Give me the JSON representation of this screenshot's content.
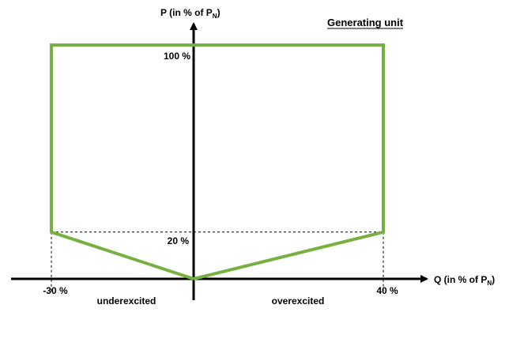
{
  "chart_data": {
    "type": "line",
    "title": "Generating unit",
    "xlabel": {
      "main": "Q (in % of P",
      "sub": "N",
      "close": ")"
    },
    "ylabel": {
      "main": "P (in % of P",
      "sub": "N",
      "close": ")"
    },
    "xlim": [
      -32,
      45
    ],
    "ylim": [
      0,
      115
    ],
    "x_ticks": [
      {
        "value": -30,
        "label": "-30 %"
      },
      {
        "value": 40,
        "label": "40 %"
      }
    ],
    "y_ticks": [
      {
        "value": 100,
        "label": "100 %"
      },
      {
        "value": 20,
        "label": "20 %"
      }
    ],
    "region_labels": {
      "left": "underexcited",
      "right": "overexcited"
    },
    "grid": false,
    "series": [
      {
        "x": [
          0,
          -30,
          -30,
          40,
          40,
          0
        ],
        "y": [
          0,
          20,
          100,
          100,
          20,
          0
        ],
        "color": "#76b041"
      }
    ],
    "reference_lines": {
      "color": "#000000",
      "style": "dashed",
      "level": 20
    }
  }
}
